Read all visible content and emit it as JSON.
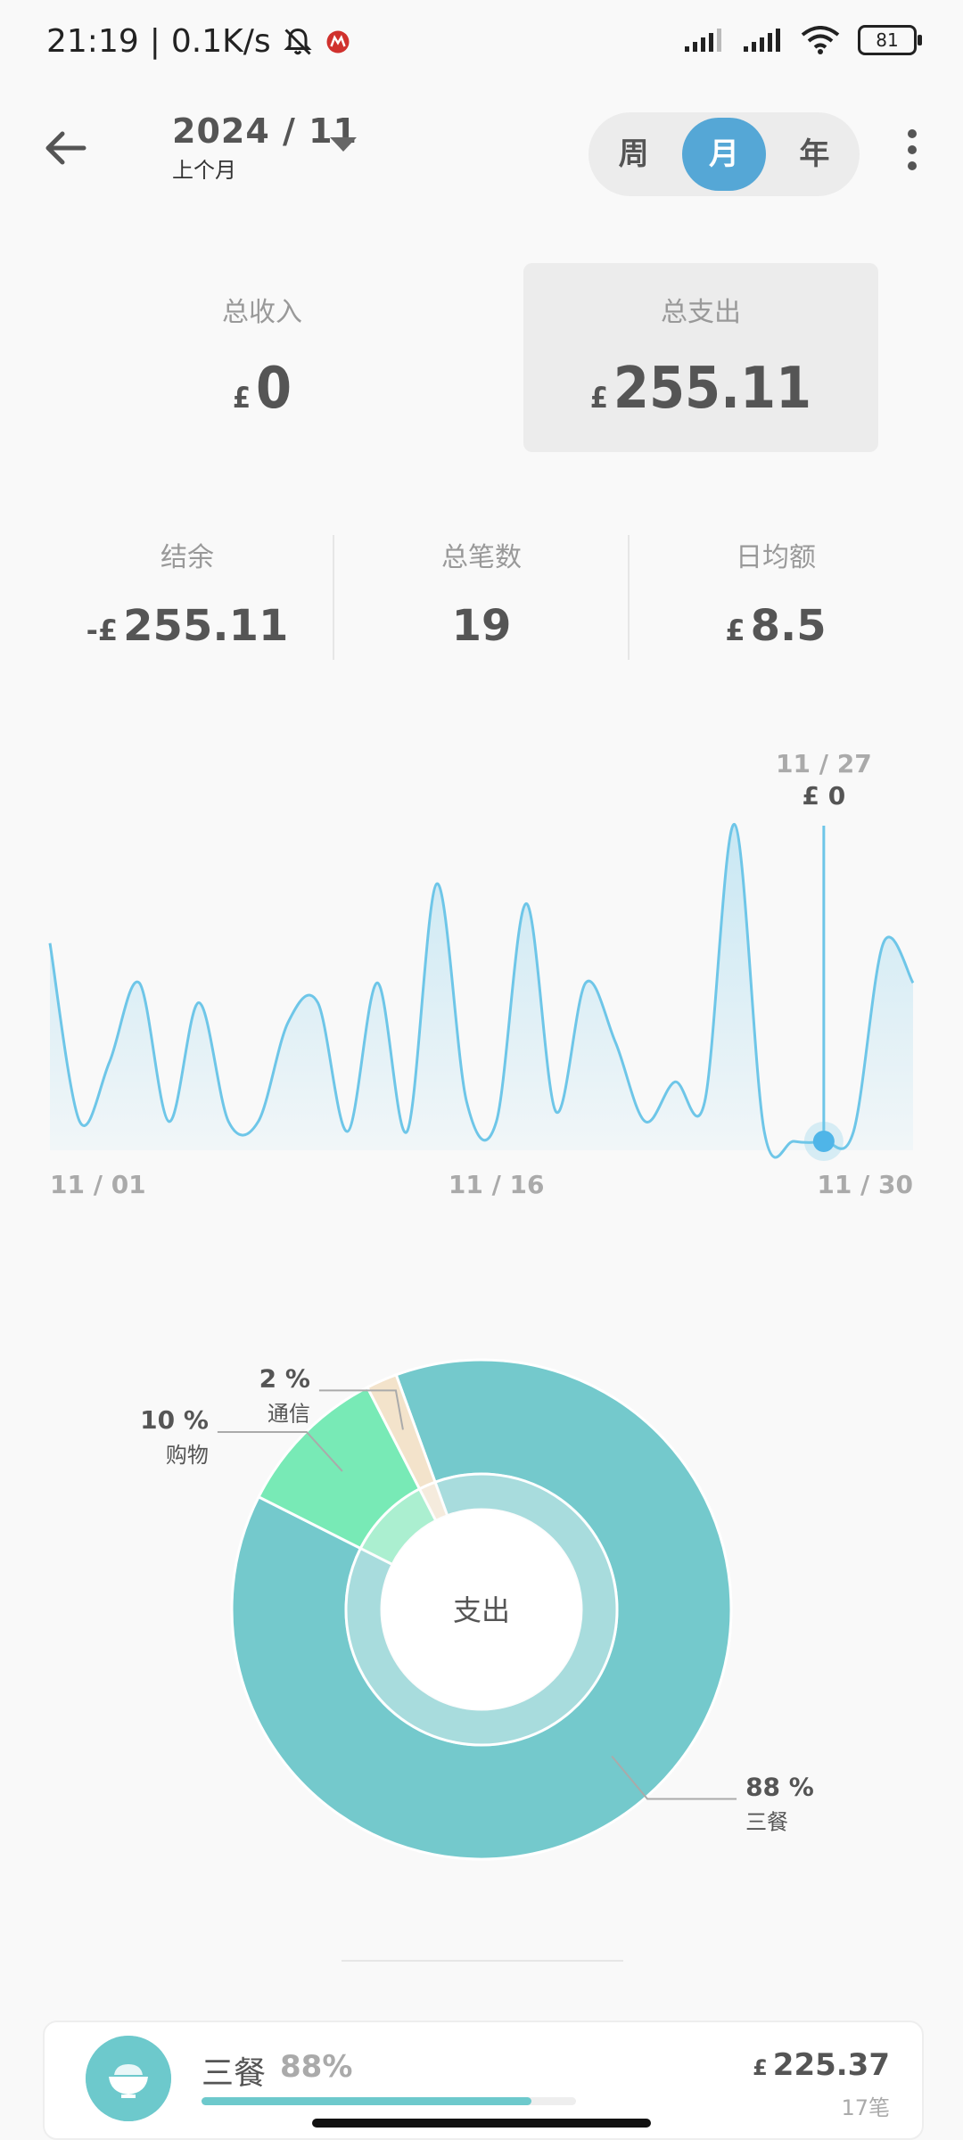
{
  "status": {
    "time": "21:19",
    "speed": "0.1K/s",
    "separator": "|",
    "battery": "81"
  },
  "header": {
    "date": "2024 / 11",
    "sub": "上个月",
    "tabs": [
      "周",
      "月",
      "年"
    ],
    "active_tab": 1
  },
  "summary": {
    "income": {
      "label": "总收入",
      "currency": "£",
      "value": "0"
    },
    "expense": {
      "label": "总支出",
      "currency": "£",
      "value": "255.11"
    }
  },
  "stats": {
    "balance": {
      "label": "结余",
      "prefix": "-£",
      "value": "255.11"
    },
    "count": {
      "label": "总笔数",
      "value": "19"
    },
    "daily": {
      "label": "日均额",
      "prefix": "£",
      "value": "8.5"
    }
  },
  "chart_data": [
    {
      "type": "line",
      "x": [
        1,
        2,
        3,
        4,
        5,
        6,
        7,
        8,
        9,
        10,
        11,
        12,
        13,
        14,
        15,
        16,
        17,
        18,
        19,
        20,
        21,
        22,
        23,
        24,
        25,
        26,
        27,
        28,
        29,
        30
      ],
      "values": [
        1.0,
        0.1,
        0.4,
        0.8,
        0.1,
        0.7,
        0.1,
        0.1,
        0.6,
        0.7,
        0.05,
        0.8,
        0.05,
        1.3,
        0.2,
        0.1,
        1.2,
        0.15,
        0.8,
        0.5,
        0.1,
        0.3,
        0.2,
        1.6,
        0.05,
        0.0,
        0.0,
        0.05,
        1.0,
        0.8
      ],
      "x_tick_labels": [
        "11 / 01",
        "11 / 16",
        "11 / 30"
      ],
      "tooltip_date": "11 / 27",
      "tooltip_value": "£ 0",
      "highlight_day": 27,
      "ylim": [
        0,
        1.8
      ],
      "color": "#6ec6e8"
    },
    {
      "type": "pie",
      "center_label": "支出",
      "slices": [
        {
          "label": "三餐",
          "percent_text": "88 %",
          "value": 88,
          "color": "#74c9cc"
        },
        {
          "label": "购物",
          "percent_text": "10 %",
          "value": 10,
          "color": "#78eab6"
        },
        {
          "label": "通信",
          "percent_text": "2 %",
          "value": 2,
          "color": "#f3e3cb"
        }
      ]
    }
  ],
  "category": {
    "name": "三餐",
    "percent": "88%",
    "fill_ratio": 0.88,
    "currency": "£",
    "amount": "225.37",
    "count": "17笔"
  },
  "colors": {
    "accent": "#55a7d6",
    "teal": "#74c9cc",
    "line": "#6ec6e8"
  }
}
